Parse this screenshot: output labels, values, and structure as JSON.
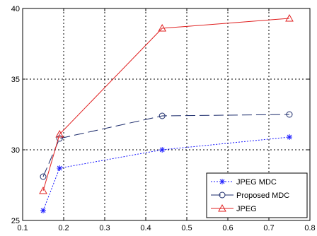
{
  "chart_data": {
    "type": "line",
    "title": "",
    "xlabel": "",
    "ylabel": "",
    "xlim": [
      0.1,
      0.8
    ],
    "ylim": [
      25,
      40
    ],
    "x_ticks": [
      0.1,
      0.2,
      0.3,
      0.4,
      0.5,
      0.6,
      0.7,
      0.8
    ],
    "x_tick_labels": [
      "0.1",
      "0.2",
      "0.3",
      "0.4",
      "0.5",
      "0.6",
      "0.7",
      "0.8"
    ],
    "y_ticks": [
      25,
      30,
      35,
      40
    ],
    "y_tick_labels": [
      "25",
      "30",
      "35",
      "40"
    ],
    "grid": true,
    "legend_position": "bottom-right",
    "series": [
      {
        "name": "JPEG MDC",
        "color": "#1a1aff",
        "line_style": "dotted",
        "marker": "asterisk",
        "x": [
          0.15,
          0.19,
          0.44,
          0.75
        ],
        "y": [
          25.7,
          28.7,
          30.0,
          30.9
        ]
      },
      {
        "name": "Proposed MDC",
        "color": "#1a2a6a",
        "line_style": "dashed",
        "marker": "circle",
        "x": [
          0.15,
          0.19,
          0.44,
          0.75
        ],
        "y": [
          28.1,
          30.8,
          32.4,
          32.5
        ]
      },
      {
        "name": "JPEG",
        "color": "#e02020",
        "line_style": "solid",
        "marker": "triangle",
        "x": [
          0.15,
          0.19,
          0.44,
          0.75
        ],
        "y": [
          27.1,
          31.1,
          38.6,
          39.3
        ]
      }
    ]
  }
}
